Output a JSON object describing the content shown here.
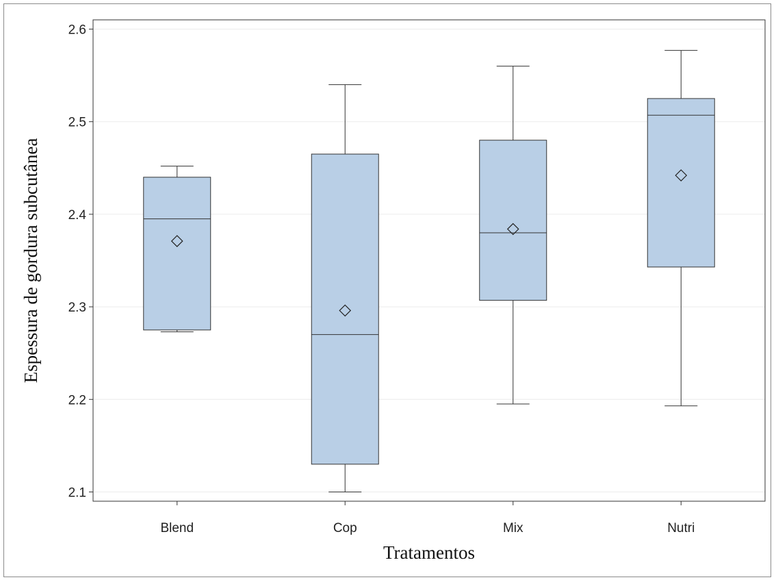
{
  "chart_data": {
    "type": "box",
    "title": "",
    "xlabel": "Tratamentos",
    "ylabel": "Espessura de gordura subcutânea",
    "ylim": [
      2.09,
      2.61
    ],
    "yticks": [
      "2.1",
      "2.2",
      "2.3",
      "2.4",
      "2.5",
      "2.6"
    ],
    "grid": "horizontal",
    "box_color": "#b9cfe6",
    "categories": [
      "Blend",
      "Cop",
      "Mix",
      "Nutri"
    ],
    "boxes": [
      {
        "category": "Blend",
        "min": 2.273,
        "q1": 2.275,
        "median": 2.395,
        "q3": 2.44,
        "max": 2.452,
        "mean": 2.371
      },
      {
        "category": "Cop",
        "min": 2.1,
        "q1": 2.13,
        "median": 2.27,
        "q3": 2.465,
        "max": 2.54,
        "mean": 2.296
      },
      {
        "category": "Mix",
        "min": 2.195,
        "q1": 2.307,
        "median": 2.38,
        "q3": 2.48,
        "max": 2.56,
        "mean": 2.384
      },
      {
        "category": "Nutri",
        "min": 2.193,
        "q1": 2.343,
        "median": 2.507,
        "q3": 2.525,
        "max": 2.577,
        "mean": 2.442
      }
    ]
  }
}
